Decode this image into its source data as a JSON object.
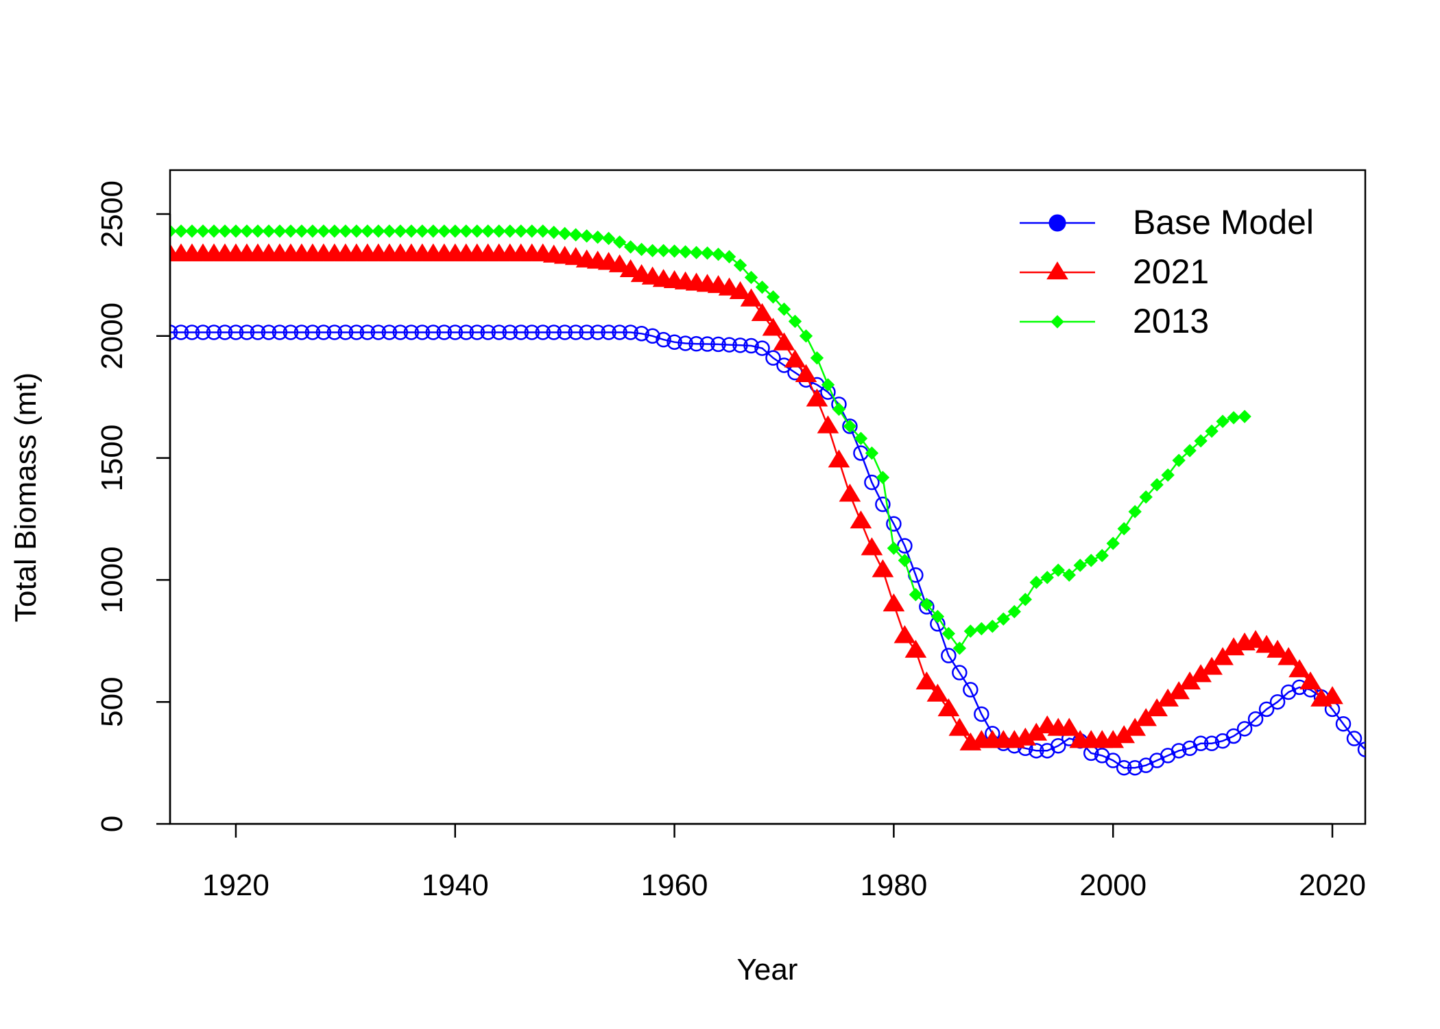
{
  "chart_data": {
    "type": "line",
    "title": "",
    "xlabel": "Year",
    "ylabel": "Total Biomass (mt)",
    "xlim": [
      1914,
      2023
    ],
    "ylim": [
      0,
      2680
    ],
    "xticks": [
      1920,
      1940,
      1960,
      1980,
      2000,
      2020
    ],
    "yticks": [
      0,
      500,
      1000,
      1500,
      2000,
      2500
    ],
    "xtick_labels": [
      "1920",
      "1940",
      "1960",
      "1980",
      "2000",
      "2020"
    ],
    "ytick_labels": [
      "0",
      "500",
      "1000",
      "1500",
      "2000",
      "2500"
    ],
    "legend": {
      "position": "top-right",
      "entries": [
        "Base Model",
        "2021",
        "2013"
      ]
    },
    "grid": false,
    "series": [
      {
        "name": "Base Model",
        "color": "#0000FF",
        "marker": "open-circle",
        "legend_marker": "filled-circle",
        "x_start": 1914,
        "values": [
          2015,
          2015,
          2015,
          2015,
          2015,
          2015,
          2015,
          2015,
          2015,
          2015,
          2015,
          2015,
          2015,
          2015,
          2015,
          2015,
          2015,
          2015,
          2015,
          2015,
          2015,
          2015,
          2015,
          2015,
          2015,
          2015,
          2015,
          2015,
          2015,
          2015,
          2015,
          2015,
          2015,
          2015,
          2015,
          2015,
          2015,
          2015,
          2015,
          2015,
          2015,
          2015,
          2015,
          2010,
          2000,
          1985,
          1975,
          1970,
          1968,
          1967,
          1966,
          1964,
          1962,
          1960,
          1950,
          1910,
          1880,
          1850,
          1820,
          1800,
          1770,
          1720,
          1630,
          1520,
          1400,
          1310,
          1230,
          1140,
          1020,
          890,
          820,
          690,
          620,
          550,
          450,
          370,
          330,
          320,
          310,
          300,
          300,
          320,
          350,
          340,
          290,
          280,
          260,
          230,
          230,
          240,
          260,
          280,
          300,
          310,
          330,
          330,
          340,
          360,
          390,
          430,
          470,
          500,
          540,
          560,
          550,
          520,
          470,
          410,
          350,
          305,
          300
        ]
      },
      {
        "name": "2021",
        "color": "#FF0000",
        "marker": "filled-triangle",
        "legend_marker": "filled-triangle",
        "x_start": 1914,
        "values": [
          2335,
          2335,
          2335,
          2335,
          2335,
          2335,
          2335,
          2335,
          2335,
          2335,
          2335,
          2335,
          2335,
          2335,
          2335,
          2335,
          2335,
          2335,
          2335,
          2335,
          2335,
          2335,
          2335,
          2335,
          2335,
          2335,
          2335,
          2335,
          2335,
          2335,
          2335,
          2335,
          2335,
          2335,
          2335,
          2330,
          2325,
          2320,
          2310,
          2305,
          2300,
          2290,
          2270,
          2250,
          2240,
          2230,
          2225,
          2220,
          2215,
          2210,
          2205,
          2195,
          2180,
          2150,
          2090,
          2030,
          1970,
          1900,
          1840,
          1740,
          1630,
          1490,
          1350,
          1240,
          1130,
          1040,
          900,
          770,
          710,
          580,
          530,
          470,
          390,
          330,
          340,
          340,
          340,
          340,
          350,
          370,
          400,
          390,
          390,
          340,
          340,
          340,
          340,
          360,
          390,
          430,
          470,
          510,
          540,
          580,
          610,
          640,
          680,
          720,
          740,
          750,
          730,
          710,
          680,
          630,
          580,
          510,
          520
        ]
      },
      {
        "name": "2013",
        "color": "#00FF00",
        "marker": "filled-diamond",
        "legend_marker": "filled-diamond",
        "x_start": 1914,
        "values": [
          2430,
          2430,
          2430,
          2430,
          2430,
          2430,
          2430,
          2430,
          2430,
          2430,
          2430,
          2430,
          2430,
          2430,
          2430,
          2430,
          2430,
          2430,
          2430,
          2430,
          2430,
          2430,
          2430,
          2430,
          2430,
          2430,
          2430,
          2430,
          2430,
          2430,
          2430,
          2430,
          2430,
          2430,
          2430,
          2425,
          2420,
          2415,
          2410,
          2405,
          2400,
          2385,
          2365,
          2355,
          2350,
          2350,
          2348,
          2345,
          2342,
          2340,
          2335,
          2325,
          2290,
          2240,
          2200,
          2160,
          2110,
          2060,
          2000,
          1910,
          1800,
          1700,
          1630,
          1580,
          1520,
          1420,
          1130,
          1080,
          940,
          900,
          850,
          780,
          720,
          790,
          800,
          810,
          840,
          870,
          920,
          990,
          1010,
          1040,
          1020,
          1060,
          1080,
          1100,
          1150,
          1210,
          1280,
          1340,
          1390,
          1430,
          1490,
          1530,
          1570,
          1610,
          1650,
          1665,
          1670
        ]
      }
    ]
  }
}
